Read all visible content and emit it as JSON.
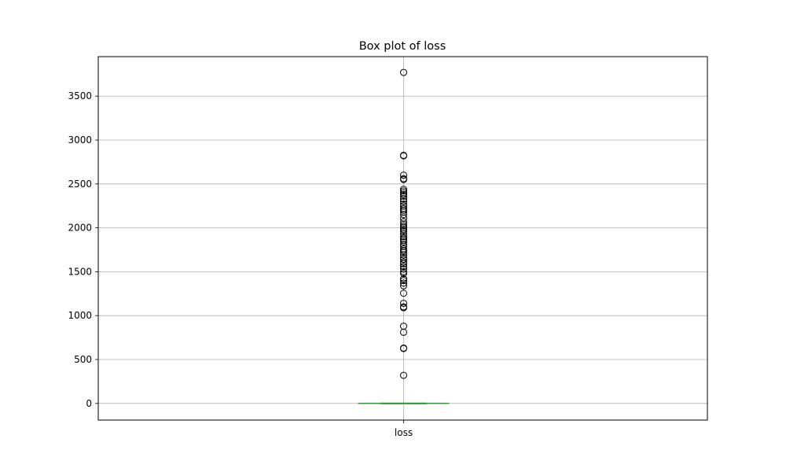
{
  "chart_data": {
    "type": "box",
    "title": "Box plot of loss",
    "categories": [
      "loss"
    ],
    "ylim": [
      -190,
      3950
    ],
    "yticks": [
      0,
      500,
      1000,
      1500,
      2000,
      2500,
      3000,
      3500
    ],
    "grid": true,
    "box": {
      "name": "loss",
      "whisker_low": 0,
      "q1": 0,
      "median": 0,
      "q3": 0,
      "whisker_high": 0,
      "outliers": [
        320,
        625,
        630,
        810,
        880,
        1090,
        1100,
        1140,
        1255,
        1340,
        1370,
        1400,
        1420,
        1480,
        1500,
        1530,
        1560,
        1590,
        1610,
        1640,
        1660,
        1690,
        1720,
        1740,
        1760,
        1790,
        1810,
        1840,
        1860,
        1880,
        1900,
        1930,
        1960,
        1980,
        2000,
        2020,
        2040,
        2070,
        2110,
        2150,
        2180,
        2200,
        2220,
        2250,
        2270,
        2300,
        2330,
        2360,
        2380,
        2400,
        2420,
        2440,
        2550,
        2560,
        2600,
        2820,
        2825,
        3770
      ]
    },
    "colors": {
      "median": "#2ca02c",
      "box": "#1f77b4",
      "grid": "#b0b0b0",
      "outlier_edge": "#000000"
    }
  }
}
